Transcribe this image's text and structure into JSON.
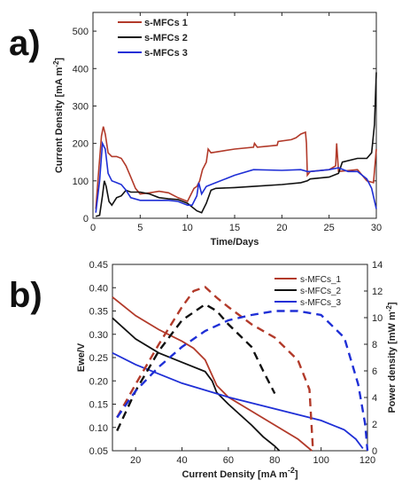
{
  "panels": {
    "a": "a)",
    "b": "b)"
  },
  "chart_data": [
    {
      "type": "line",
      "xlabel": "Time/Days",
      "ylabel": "Current Density [mA m",
      "ylabel_sup": "-2",
      "ylabel_end": "]",
      "xlim": [
        0,
        30
      ],
      "ylim": [
        0,
        550
      ],
      "xticks": [
        0,
        5,
        10,
        15,
        20,
        25,
        30
      ],
      "yticks": [
        0,
        100,
        200,
        300,
        400,
        500
      ],
      "legend_position": "top-left",
      "colors": [
        "#b23a2a",
        "#111111",
        "#1f2fd6"
      ],
      "series": [
        {
          "name": "s-MFCs 1",
          "color": "#b23a2a",
          "x": [
            0.3,
            0.6,
            0.9,
            1.1,
            1.3,
            1.6,
            2.0,
            2.5,
            3.0,
            3.5,
            4.0,
            4.5,
            5.0,
            6.0,
            7.0,
            8.0,
            9.0,
            10.0,
            10.4,
            10.7,
            11.0,
            11.3,
            11.6,
            12.0,
            12.2,
            12.5,
            15.0,
            17.0,
            17.1,
            17.4,
            19.5,
            19.6,
            21.0,
            21.5,
            22.0,
            22.5,
            22.6,
            22.7,
            23.0,
            25.0,
            25.7,
            25.8,
            26.0,
            28.0,
            29.0,
            29.7,
            30.0
          ],
          "y": [
            25,
            125,
            220,
            245,
            225,
            175,
            165,
            165,
            160,
            140,
            110,
            80,
            65,
            68,
            72,
            68,
            55,
            45,
            65,
            80,
            85,
            100,
            130,
            150,
            185,
            175,
            185,
            190,
            200,
            190,
            195,
            205,
            210,
            215,
            225,
            230,
            200,
            115,
            125,
            130,
            140,
            200,
            125,
            130,
            100,
            95,
            185
          ]
        },
        {
          "name": "s-MFCs 2",
          "color": "#111111",
          "x": [
            0.3,
            0.7,
            1.0,
            1.2,
            1.4,
            1.7,
            2.0,
            2.5,
            3.0,
            3.5,
            4.0,
            5.0,
            6.0,
            7.0,
            8.0,
            9.0,
            10.0,
            11.0,
            11.5,
            12.0,
            12.5,
            13.0,
            15.0,
            17.0,
            20.0,
            22.0,
            22.7,
            23.0,
            25.0,
            26.0,
            26.4,
            28.0,
            29.0,
            29.5,
            29.8,
            30.0
          ],
          "y": [
            5,
            8,
            60,
            100,
            85,
            45,
            35,
            55,
            60,
            75,
            70,
            70,
            65,
            55,
            52,
            50,
            40,
            20,
            15,
            40,
            75,
            80,
            82,
            85,
            90,
            95,
            100,
            105,
            110,
            120,
            150,
            160,
            160,
            175,
            250,
            390
          ]
        },
        {
          "name": "s-MFCs 3",
          "color": "#1f2fd6",
          "x": [
            0.3,
            0.7,
            1.0,
            1.3,
            1.6,
            2.0,
            2.5,
            3.0,
            3.5,
            4.0,
            5.0,
            6.0,
            8.0,
            9.0,
            10.0,
            10.5,
            11.0,
            11.2,
            11.5,
            12.0,
            12.5,
            13.0,
            15.0,
            17.0,
            20.0,
            22.0,
            22.7,
            23.0,
            25.0,
            26.0,
            27.0,
            28.0,
            29.0,
            29.5,
            30.0
          ],
          "y": [
            15,
            100,
            200,
            185,
            120,
            100,
            95,
            90,
            75,
            55,
            48,
            48,
            48,
            45,
            35,
            35,
            60,
            95,
            65,
            85,
            90,
            95,
            115,
            130,
            128,
            130,
            125,
            125,
            130,
            135,
            125,
            125,
            105,
            80,
            25
          ]
        }
      ]
    },
    {
      "type": "line",
      "xlabel": "Current Density [mA m",
      "xlabel_sup": "-2",
      "xlabel_end": "]",
      "ylabel": "Ewe/V",
      "y2label": "Power density [mW m",
      "y2label_sup": "-2",
      "y2label_end": "]",
      "xlim": [
        10,
        120
      ],
      "ylim": [
        0.05,
        0.45
      ],
      "y2lim": [
        0,
        14
      ],
      "xticks": [
        20,
        40,
        60,
        80,
        100,
        120
      ],
      "yticks": [
        0.05,
        0.1,
        0.15,
        0.2,
        0.25,
        0.3,
        0.35,
        0.4,
        0.45
      ],
      "yticks_labels": [
        "0.05",
        "0.10",
        "0.15",
        "0.20",
        "0.25",
        "0.30",
        "0.35",
        "0.40",
        "0.45"
      ],
      "y2ticks": [
        0,
        2,
        4,
        6,
        8,
        10,
        12,
        14
      ],
      "legend_position": "top-right",
      "series": [
        {
          "name": "s-MFCs_1",
          "color": "#b23a2a",
          "kind": "polarization",
          "x": [
            10,
            20,
            30,
            40,
            45,
            50,
            55,
            60,
            70,
            80,
            90,
            96
          ],
          "y": [
            0.38,
            0.34,
            0.31,
            0.285,
            0.27,
            0.245,
            0.19,
            0.165,
            0.135,
            0.105,
            0.075,
            0.05
          ]
        },
        {
          "name": "s-MFCs_2",
          "color": "#111111",
          "kind": "polarization",
          "x": [
            10,
            20,
            30,
            40,
            50,
            53,
            55,
            60,
            70,
            75,
            80,
            82
          ],
          "y": [
            0.335,
            0.29,
            0.26,
            0.24,
            0.22,
            0.2,
            0.175,
            0.15,
            0.105,
            0.08,
            0.06,
            0.05
          ]
        },
        {
          "name": "s-MFCs_3",
          "color": "#1f2fd6",
          "kind": "polarization",
          "x": [
            10,
            20,
            40,
            60,
            80,
            100,
            110,
            115,
            118
          ],
          "y": [
            0.26,
            0.235,
            0.195,
            0.165,
            0.14,
            0.115,
            0.095,
            0.075,
            0.055
          ]
        },
        {
          "name": "s-MFCs_1",
          "color": "#b23a2a",
          "kind": "power",
          "x": [
            12,
            20,
            30,
            40,
            45,
            50,
            55,
            60,
            70,
            80,
            90,
            95,
            96,
            96.5
          ],
          "y": [
            2.5,
            5.0,
            8.0,
            10.8,
            12.0,
            12.3,
            11.5,
            10.8,
            9.5,
            8.5,
            6.8,
            4.6,
            1.5,
            0
          ]
        },
        {
          "name": "s-MFCs_2",
          "color": "#111111",
          "kind": "power",
          "x": [
            12,
            20,
            30,
            40,
            50,
            55,
            60,
            70,
            75,
            80
          ],
          "y": [
            1.5,
            4.5,
            7.5,
            9.8,
            11.0,
            10.5,
            9.5,
            7.8,
            6.0,
            4.3
          ]
        },
        {
          "name": "s-MFCs_3",
          "color": "#1f2fd6",
          "kind": "power",
          "x": [
            12,
            20,
            30,
            40,
            50,
            60,
            70,
            80,
            90,
            100,
            110,
            116,
            119,
            120
          ],
          "y": [
            2.5,
            4.5,
            6.3,
            7.8,
            9.0,
            9.8,
            10.2,
            10.5,
            10.5,
            10.2,
            8.5,
            5.0,
            2.0,
            0
          ]
        }
      ]
    }
  ]
}
